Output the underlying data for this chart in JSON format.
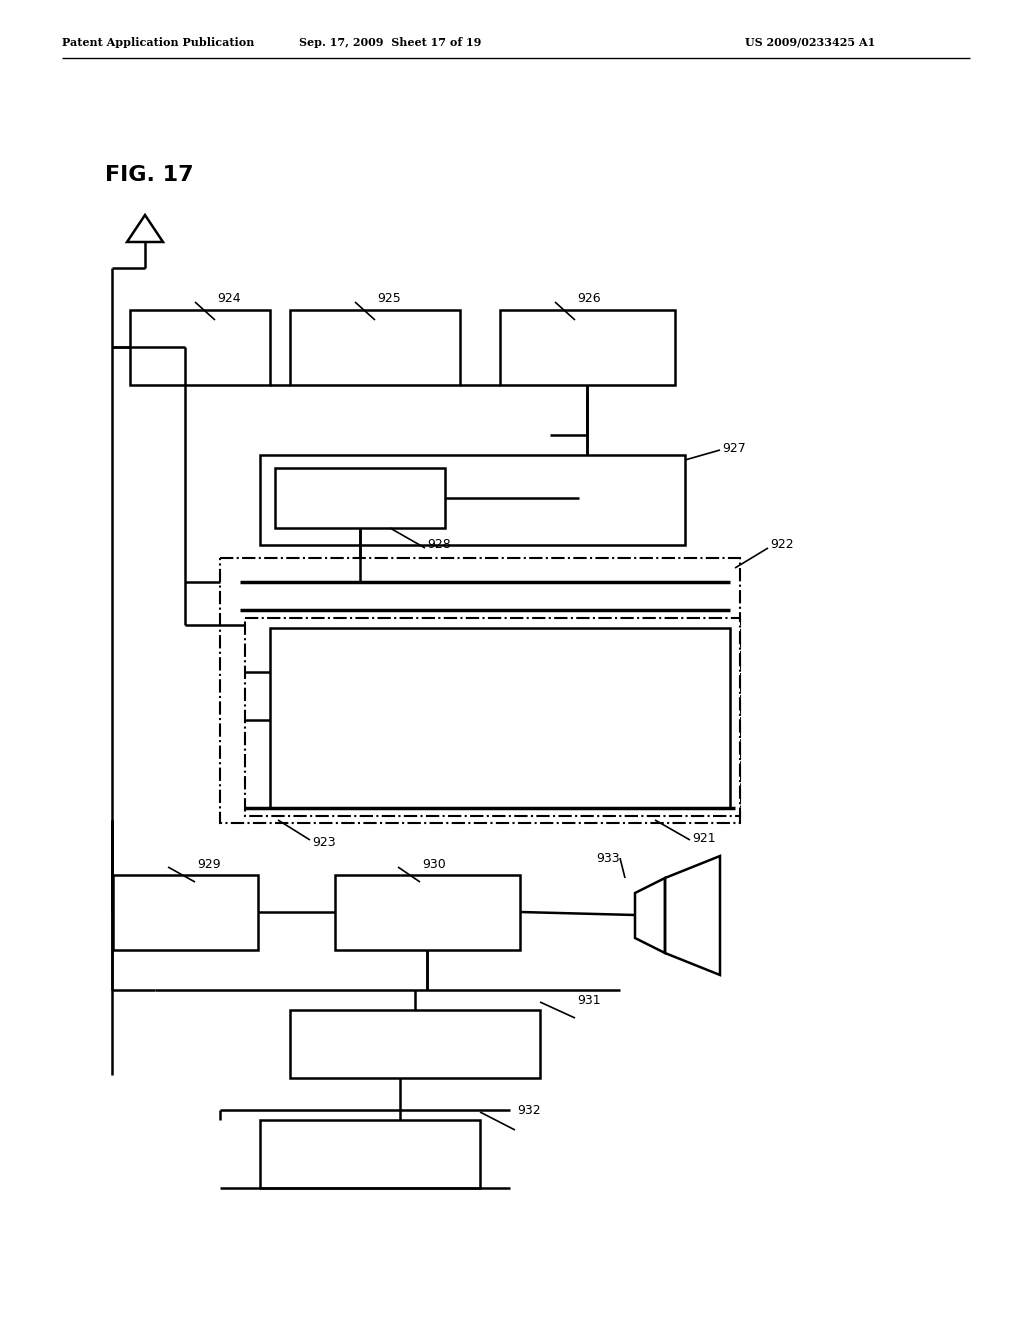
{
  "bg_color": "#ffffff",
  "header_left": "Patent Application Publication",
  "header_mid": "Sep. 17, 2009  Sheet 17 of 19",
  "header_right": "US 2009/0233425 A1",
  "fig_label": "FIG. 17",
  "lw": 1.8,
  "lw_thick": 2.5,
  "lw_thin": 1.2
}
